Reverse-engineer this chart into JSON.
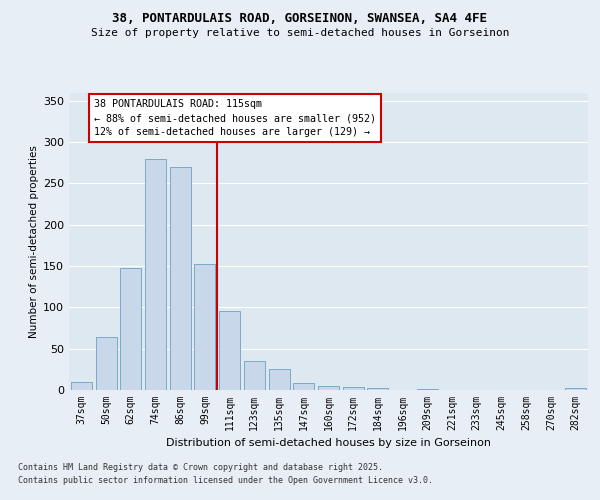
{
  "title1": "38, PONTARDULAIS ROAD, GORSEINON, SWANSEA, SA4 4FE",
  "title2": "Size of property relative to semi-detached houses in Gorseinon",
  "xlabel": "Distribution of semi-detached houses by size in Gorseinon",
  "ylabel": "Number of semi-detached properties",
  "categories": [
    "37sqm",
    "50sqm",
    "62sqm",
    "74sqm",
    "86sqm",
    "99sqm",
    "111sqm",
    "123sqm",
    "135sqm",
    "147sqm",
    "160sqm",
    "172sqm",
    "184sqm",
    "196sqm",
    "209sqm",
    "221sqm",
    "233sqm",
    "245sqm",
    "258sqm",
    "270sqm",
    "282sqm"
  ],
  "values": [
    10,
    64,
    148,
    280,
    270,
    153,
    95,
    35,
    25,
    9,
    5,
    4,
    2,
    0,
    1,
    0,
    0,
    0,
    0,
    0,
    2
  ],
  "bar_color": "#c8d8ea",
  "bar_edge_color": "#7aaac8",
  "vline_x": 6.0,
  "vline_color": "#cc0000",
  "annotation_title": "38 PONTARDULAIS ROAD: 115sqm",
  "annotation_line1": "← 88% of semi-detached houses are smaller (952)",
  "annotation_line2": "12% of semi-detached houses are larger (129) →",
  "annotation_box_color": "#cc0000",
  "ylim": [
    0,
    360
  ],
  "yticks": [
    0,
    50,
    100,
    150,
    200,
    250,
    300,
    350
  ],
  "footnote1": "Contains HM Land Registry data © Crown copyright and database right 2025.",
  "footnote2": "Contains public sector information licensed under the Open Government Licence v3.0.",
  "bg_color": "#e8eef5",
  "plot_bg_color": "#dde8f0"
}
